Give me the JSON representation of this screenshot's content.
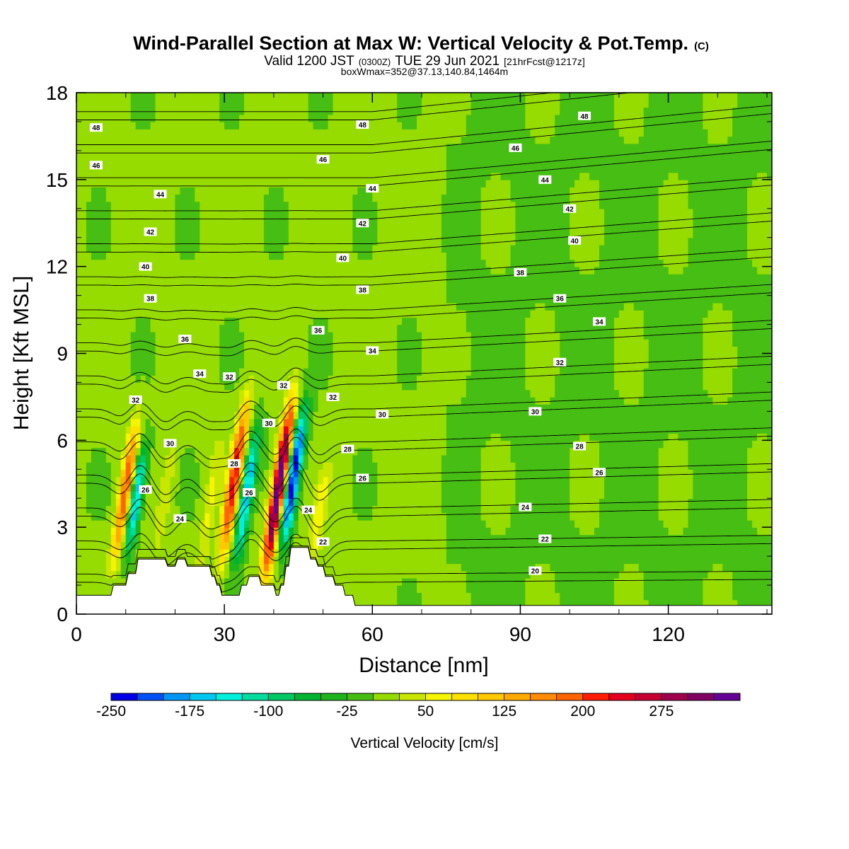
{
  "chart_data": {
    "type": "heatmap",
    "title": "Wind-Parallel Section at Max W: Vertical Velocity & Pot.Temp.",
    "title_mark": "(C)",
    "subtitle_main": "Valid 1200 JST",
    "subtitle_utc": "(0300Z)",
    "subtitle_date": "TUE 29 Jun 2021",
    "subtitle_fcst": "[21hrFcst@1217z]",
    "subtitle2": "boxWmax=352@37.13,140.84,1464m",
    "xlabel": "Distance [nm]",
    "ylabel": "Height [Kft MSL]",
    "xlim": [
      0,
      141
    ],
    "ylim": [
      0,
      18
    ],
    "x_ticks": [
      0,
      30,
      60,
      90,
      120
    ],
    "y_ticks": [
      0,
      3,
      6,
      9,
      12,
      15,
      18
    ],
    "colorbar": {
      "label": "Vertical Velocity [cm/s]",
      "min": -250,
      "max": 325,
      "step": 25,
      "tick_values": [
        -250,
        -175,
        -100,
        -25,
        50,
        125,
        200,
        275
      ],
      "colors": [
        "#0000e6",
        "#0050f5",
        "#0096f5",
        "#00c8f0",
        "#00f0dc",
        "#00dca0",
        "#00c864",
        "#00b432",
        "#1eb41e",
        "#46be14",
        "#96dc00",
        "#c8e600",
        "#f5f500",
        "#ffe100",
        "#ffc800",
        "#ffaa00",
        "#ff8c00",
        "#ff6400",
        "#ff1e00",
        "#e6001e",
        "#c80032",
        "#a0004b",
        "#820064",
        "#640096"
      ]
    },
    "vertical_velocity_features": [
      {
        "x": 10,
        "z_bottom": 1.5,
        "z_top": 7.0,
        "w": 190
      },
      {
        "x": 12,
        "z_bottom": 1.8,
        "z_top": 6.2,
        "w": -175
      },
      {
        "x": 18,
        "z_bottom": 1.8,
        "z_top": 6.5,
        "w": 40
      },
      {
        "x": 27,
        "z_bottom": 1.0,
        "z_top": 6.5,
        "w": 50
      },
      {
        "x": 32,
        "z_bottom": 1.5,
        "z_top": 7.8,
        "w": 225
      },
      {
        "x": 34.5,
        "z_bottom": 1.5,
        "z_top": 6.8,
        "w": -175
      },
      {
        "x": 41,
        "z_bottom": 1.0,
        "z_top": 7.8,
        "w": 352
      },
      {
        "x": 44,
        "z_bottom": 2.0,
        "z_top": 7.5,
        "w": -250
      },
      {
        "x": 49,
        "z_bottom": 1.0,
        "z_top": 5.5,
        "w": 60
      }
    ],
    "terrain": [
      {
        "x": 0,
        "z": 0.65
      },
      {
        "x": 7,
        "z": 0.65
      },
      {
        "x": 7.5,
        "z": 1.0
      },
      {
        "x": 10,
        "z": 1.0
      },
      {
        "x": 10.5,
        "z": 1.4
      },
      {
        "x": 12,
        "z": 1.4
      },
      {
        "x": 12.5,
        "z": 1.9
      },
      {
        "x": 18,
        "z": 1.9
      },
      {
        "x": 18.5,
        "z": 1.65
      },
      {
        "x": 20,
        "z": 1.65
      },
      {
        "x": 20.5,
        "z": 1.9
      },
      {
        "x": 22,
        "z": 1.9
      },
      {
        "x": 22.5,
        "z": 1.65
      },
      {
        "x": 27,
        "z": 1.65
      },
      {
        "x": 27.5,
        "z": 1.3
      },
      {
        "x": 28,
        "z": 1.3
      },
      {
        "x": 28.5,
        "z": 1.0
      },
      {
        "x": 29,
        "z": 1.0
      },
      {
        "x": 29.5,
        "z": 0.65
      },
      {
        "x": 33,
        "z": 0.65
      },
      {
        "x": 33.5,
        "z": 1.0
      },
      {
        "x": 34.5,
        "z": 1.0
      },
      {
        "x": 35,
        "z": 1.3
      },
      {
        "x": 37,
        "z": 1.3
      },
      {
        "x": 37.5,
        "z": 1.0
      },
      {
        "x": 40,
        "z": 1.0
      },
      {
        "x": 40.5,
        "z": 0.65
      },
      {
        "x": 41,
        "z": 0.65
      },
      {
        "x": 41.5,
        "z": 1.0
      },
      {
        "x": 42,
        "z": 1.0
      },
      {
        "x": 42.5,
        "z": 1.65
      },
      {
        "x": 43,
        "z": 1.65
      },
      {
        "x": 43.5,
        "z": 2.3
      },
      {
        "x": 47,
        "z": 2.3
      },
      {
        "x": 47.5,
        "z": 1.9
      },
      {
        "x": 48.5,
        "z": 1.9
      },
      {
        "x": 49,
        "z": 1.65
      },
      {
        "x": 50,
        "z": 1.65
      },
      {
        "x": 50.5,
        "z": 1.3
      },
      {
        "x": 52,
        "z": 1.3
      },
      {
        "x": 52.5,
        "z": 1.0
      },
      {
        "x": 54,
        "z": 1.0
      },
      {
        "x": 54.5,
        "z": 0.65
      },
      {
        "x": 56,
        "z": 0.65
      },
      {
        "x": 56.5,
        "z": 0.3
      },
      {
        "x": 141,
        "z": 0.3
      }
    ],
    "isentropes": [
      {
        "theta": 20,
        "label_x": 93,
        "label_z": 1.5
      },
      {
        "theta": 22,
        "label_x": 50,
        "label_z": 2.5
      },
      {
        "theta": 22,
        "label_x": 95,
        "label_z": 2.6
      },
      {
        "theta": 24,
        "label_x": 21,
        "label_z": 3.3
      },
      {
        "theta": 24,
        "label_x": 47,
        "label_z": 3.6
      },
      {
        "theta": 24,
        "label_x": 91,
        "label_z": 3.7
      },
      {
        "theta": 26,
        "label_x": 14,
        "label_z": 4.3
      },
      {
        "theta": 26,
        "label_x": 35,
        "label_z": 4.2
      },
      {
        "theta": 26,
        "label_x": 58,
        "label_z": 4.7
      },
      {
        "theta": 26,
        "label_x": 106,
        "label_z": 4.9
      },
      {
        "theta": 28,
        "label_x": 32,
        "label_z": 5.2
      },
      {
        "theta": 28,
        "label_x": 55,
        "label_z": 5.7
      },
      {
        "theta": 28,
        "label_x": 102,
        "label_z": 5.8
      },
      {
        "theta": 30,
        "label_x": 19,
        "label_z": 5.9
      },
      {
        "theta": 30,
        "label_x": 39,
        "label_z": 6.6
      },
      {
        "theta": 30,
        "label_x": 62,
        "label_z": 6.9
      },
      {
        "theta": 30,
        "label_x": 93,
        "label_z": 7.0
      },
      {
        "theta": 32,
        "label_x": 12,
        "label_z": 7.4
      },
      {
        "theta": 32,
        "label_x": 31,
        "label_z": 8.2
      },
      {
        "theta": 32,
        "label_x": 42,
        "label_z": 7.9
      },
      {
        "theta": 32,
        "label_x": 52,
        "label_z": 7.5
      },
      {
        "theta": 32,
        "label_x": 98,
        "label_z": 8.7
      },
      {
        "theta": 34,
        "label_x": 25,
        "label_z": 8.3
      },
      {
        "theta": 34,
        "label_x": 60,
        "label_z": 9.1
      },
      {
        "theta": 34,
        "label_x": 106,
        "label_z": 10.1
      },
      {
        "theta": 36,
        "label_x": 22,
        "label_z": 9.5
      },
      {
        "theta": 36,
        "label_x": 49,
        "label_z": 9.8
      },
      {
        "theta": 36,
        "label_x": 98,
        "label_z": 10.9
      },
      {
        "theta": 38,
        "label_x": 15,
        "label_z": 10.9
      },
      {
        "theta": 38,
        "label_x": 58,
        "label_z": 11.2
      },
      {
        "theta": 38,
        "label_x": 90,
        "label_z": 11.8
      },
      {
        "theta": 40,
        "label_x": 14,
        "label_z": 12.0
      },
      {
        "theta": 40,
        "label_x": 54,
        "label_z": 12.3
      },
      {
        "theta": 40,
        "label_x": 101,
        "label_z": 12.9
      },
      {
        "theta": 42,
        "label_x": 15,
        "label_z": 13.2
      },
      {
        "theta": 42,
        "label_x": 58,
        "label_z": 13.5
      },
      {
        "theta": 42,
        "label_x": 100,
        "label_z": 14.0
      },
      {
        "theta": 44,
        "label_x": 17,
        "label_z": 14.5
      },
      {
        "theta": 44,
        "label_x": 60,
        "label_z": 14.7
      },
      {
        "theta": 44,
        "label_x": 95,
        "label_z": 15.0
      },
      {
        "theta": 46,
        "label_x": 4,
        "label_z": 15.5
      },
      {
        "theta": 46,
        "label_x": 50,
        "label_z": 15.7
      },
      {
        "theta": 46,
        "label_x": 89,
        "label_z": 16.1
      },
      {
        "theta": 48,
        "label_x": 4,
        "label_z": 16.8
      },
      {
        "theta": 48,
        "label_x": 58,
        "label_z": 16.9
      },
      {
        "theta": 48,
        "label_x": 103,
        "label_z": 17.2
      }
    ]
  }
}
